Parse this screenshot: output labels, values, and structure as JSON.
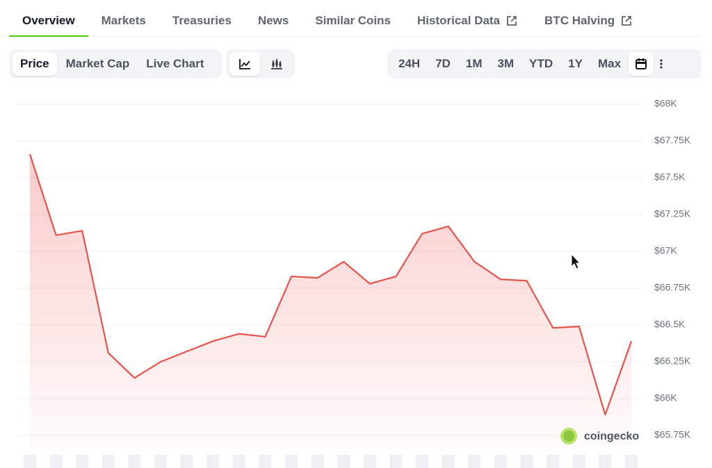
{
  "tabs": [
    {
      "label": "Overview",
      "active": true
    },
    {
      "label": "Markets"
    },
    {
      "label": "Treasuries"
    },
    {
      "label": "News"
    },
    {
      "label": "Similar Coins"
    },
    {
      "label": "Historical Data",
      "external": true
    },
    {
      "label": "BTC Halving",
      "external": true
    }
  ],
  "views": [
    "Price",
    "Market Cap",
    "Live Chart"
  ],
  "ranges": [
    "24H",
    "7D",
    "1M",
    "3M",
    "YTD",
    "1Y",
    "Max"
  ],
  "watermark": "coingecko",
  "chart_data": {
    "type": "line",
    "series": [
      {
        "color": "#e5534b",
        "values": [
          67660,
          67110,
          67140,
          66310,
          66140,
          66250,
          66320,
          66390,
          66440,
          66420,
          66830,
          66820,
          66930,
          66780,
          66830,
          67120,
          67170,
          66930,
          66810,
          66800,
          66480,
          66490,
          65890,
          66390
        ]
      }
    ],
    "ylim": [
      65750,
      68000
    ],
    "yticks": [
      {
        "value": 68000,
        "label": "$68K"
      },
      {
        "value": 67750,
        "label": "$67.75K"
      },
      {
        "value": 67500,
        "label": "$67.5K"
      },
      {
        "value": 67250,
        "label": "$67.25K"
      },
      {
        "value": 67000,
        "label": "$67K"
      },
      {
        "value": 66750,
        "label": "$66.75K"
      },
      {
        "value": 66500,
        "label": "$66.5K"
      },
      {
        "value": 66250,
        "label": "$66.25K"
      },
      {
        "value": 66000,
        "label": "$66K"
      },
      {
        "value": 65750,
        "label": "$65.75K"
      }
    ],
    "grid": true
  }
}
